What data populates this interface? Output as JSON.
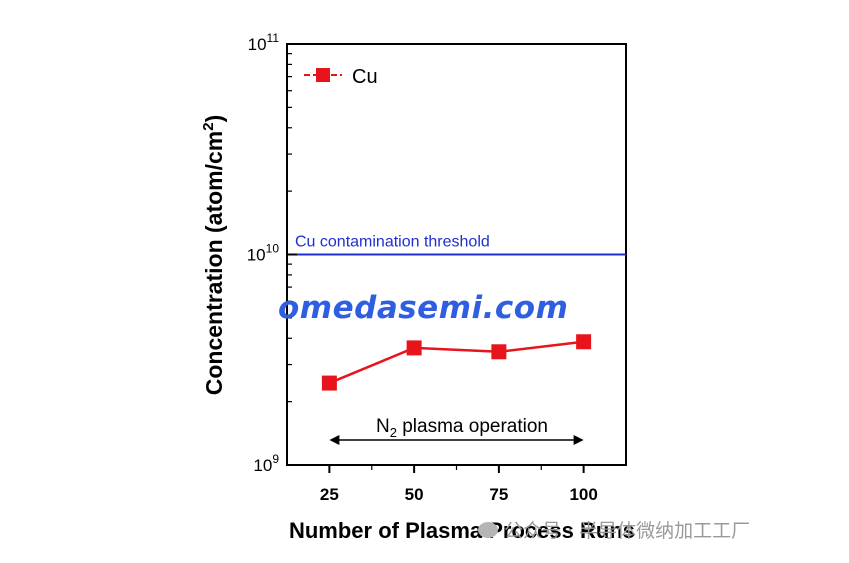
{
  "chart_data": {
    "type": "line",
    "ylabel": "Concentration (atom/cm²)",
    "ylabel_base": "Concentration (atom/cm",
    "ylabel_sup": "2",
    "ylabel_tail": ")",
    "xlabel": "Number of Plasma Process Runs",
    "x": [
      25,
      50,
      75,
      100
    ],
    "x_tick_labels": [
      "25",
      "50",
      "75",
      "100"
    ],
    "xlim": [
      12.5,
      112.5
    ],
    "y_scale": "log",
    "ylim": [
      1000000000.0,
      100000000000.0
    ],
    "y_tick_labels": [
      {
        "base": "10",
        "exp": "9"
      },
      {
        "base": "10",
        "exp": "10"
      },
      {
        "base": "10",
        "exp": "11"
      }
    ],
    "series": [
      {
        "name": "Cu",
        "values": [
          2450000000.0,
          3600000000.0,
          3450000000.0,
          3850000000.0
        ],
        "color": "#e8141b",
        "marker": "square"
      }
    ],
    "legend": {
      "label": "Cu",
      "placement": "top-left"
    },
    "threshold": {
      "value": 10000000000.0,
      "label": "Cu contamination threshold",
      "color": "#1f2fd0"
    },
    "annotation": {
      "text_main": "N",
      "text_sub": "2",
      "text_tail": " plasma operation",
      "x_start": 25,
      "x_end": 100
    }
  },
  "watermark": {
    "text": "omedasemi.com",
    "color": "#2f5fe0"
  },
  "source_badge": {
    "text": "公众号 · 半导体微纳加工工厂",
    "icon": "wechat-icon"
  }
}
